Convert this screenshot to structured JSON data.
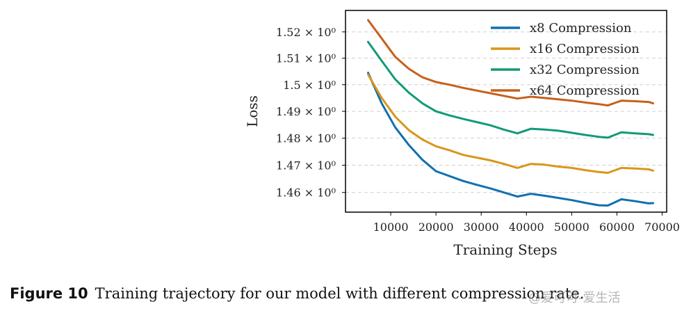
{
  "caption": {
    "label": "Figure 10",
    "text": "Training trajectory for our model with different compression rate."
  },
  "watermark": "@爱可可-爱生活",
  "colors": {
    "x8": "#1070b0",
    "x16": "#d9961a",
    "x32": "#119a77",
    "x64": "#c7601a",
    "grid": "#d0d0d0",
    "axis": "#000000"
  },
  "chart_data": {
    "type": "line",
    "title": "",
    "xlabel": "Training Steps",
    "ylabel": "Loss",
    "xlim": [
      0,
      71000
    ],
    "ylim": [
      1.4528,
      1.5282
    ],
    "x_ticks": [
      10000,
      20000,
      30000,
      40000,
      50000,
      60000,
      70000
    ],
    "x_tick_labels": [
      "10000",
      "20000",
      "30000",
      "40000",
      "50000",
      "60000",
      "70000"
    ],
    "y_ticks": [
      1.46,
      1.47,
      1.48,
      1.49,
      1.5,
      1.51,
      1.52
    ],
    "y_tick_labels": [
      "1.46 × 10⁰",
      "1.47 × 10⁰",
      "1.48 × 10⁰",
      "1.49 × 10⁰",
      "1.5 × 10⁰",
      "1.51 × 10⁰",
      "1.52 × 10⁰"
    ],
    "y_scale": "log",
    "grid": "horizontal dashed",
    "legend_position": "top-right",
    "x": [
      5000,
      8000,
      11000,
      14000,
      17000,
      20000,
      23000,
      26000,
      29000,
      32000,
      35000,
      38000,
      41000,
      44000,
      47000,
      50000,
      53000,
      56000,
      58000,
      61000,
      64000,
      67000,
      68000
    ],
    "series": [
      {
        "name": "x8 Compression",
        "color_key": "x8",
        "values": [
          1.5045,
          1.493,
          1.484,
          1.4775,
          1.472,
          1.4678,
          1.466,
          1.4642,
          1.4628,
          1.4615,
          1.46,
          1.4585,
          1.4595,
          1.4588,
          1.458,
          1.4572,
          1.4562,
          1.4553,
          1.4552,
          1.4575,
          1.4568,
          1.456,
          1.4561
        ]
      },
      {
        "name": "x16 Compression",
        "color_key": "x16",
        "values": [
          1.5038,
          1.495,
          1.488,
          1.483,
          1.4795,
          1.477,
          1.4755,
          1.4738,
          1.4728,
          1.4718,
          1.4705,
          1.469,
          1.4705,
          1.4702,
          1.4695,
          1.469,
          1.4682,
          1.4675,
          1.4672,
          1.469,
          1.4688,
          1.4685,
          1.468
        ]
      },
      {
        "name": "x32 Compression",
        "color_key": "x32",
        "values": [
          1.5162,
          1.509,
          1.502,
          1.497,
          1.493,
          1.49,
          1.4885,
          1.4872,
          1.486,
          1.4848,
          1.4832,
          1.4818,
          1.4835,
          1.4832,
          1.4828,
          1.482,
          1.4812,
          1.4805,
          1.4802,
          1.4822,
          1.4818,
          1.4815,
          1.4812
        ]
      },
      {
        "name": "x64 Compression",
        "color_key": "x64",
        "values": [
          1.5245,
          1.5175,
          1.5105,
          1.506,
          1.5028,
          1.501,
          1.5,
          1.4988,
          1.4978,
          1.4968,
          1.4958,
          1.4948,
          1.4955,
          1.495,
          1.4945,
          1.494,
          1.4933,
          1.4927,
          1.4922,
          1.494,
          1.4938,
          1.4935,
          1.493
        ]
      }
    ]
  }
}
